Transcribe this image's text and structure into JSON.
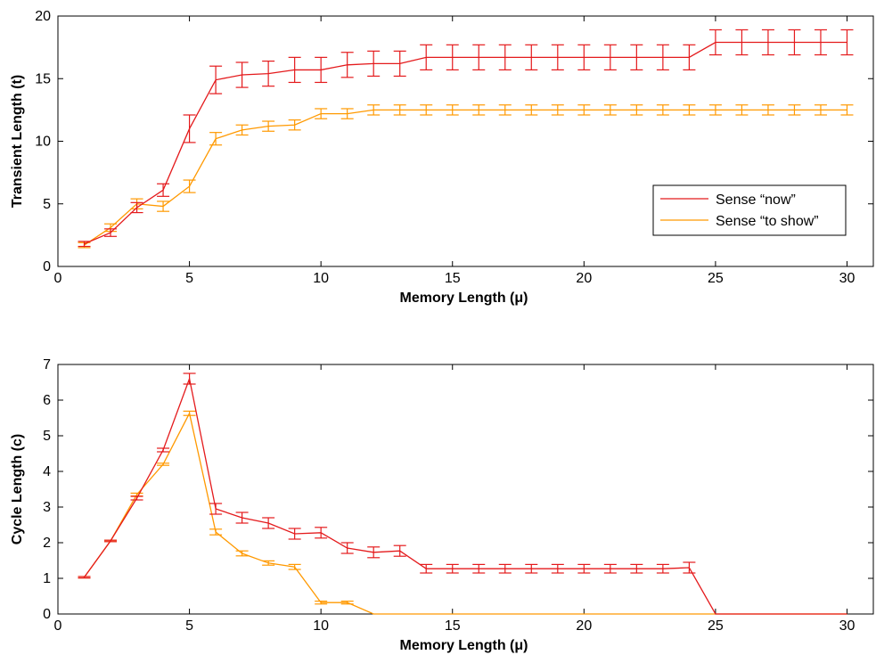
{
  "chart_data": [
    {
      "type": "line",
      "title": "",
      "xlabel": "Memory Length (μ)",
      "ylabel": "Transient Length (t)",
      "xlim": [
        0,
        31
      ],
      "ylim": [
        0,
        20
      ],
      "xticks": [
        0,
        5,
        10,
        15,
        20,
        25,
        30
      ],
      "yticks": [
        0,
        5,
        10,
        15,
        20
      ],
      "grid": false,
      "legend_position": "right-middle",
      "x": [
        1,
        2,
        3,
        4,
        5,
        6,
        7,
        8,
        9,
        10,
        11,
        12,
        13,
        14,
        15,
        16,
        17,
        18,
        19,
        20,
        21,
        22,
        23,
        24,
        25,
        26,
        27,
        28,
        29,
        30
      ],
      "series": [
        {
          "name": "Sense “now”",
          "color": "#e41a1c",
          "values": [
            1.8,
            2.7,
            4.7,
            6.1,
            11.0,
            14.9,
            15.3,
            15.4,
            15.7,
            15.7,
            16.1,
            16.2,
            16.2,
            16.7,
            16.7,
            16.7,
            16.7,
            16.7,
            16.7,
            16.7,
            16.7,
            16.7,
            16.7,
            16.7,
            17.9,
            17.9,
            17.9,
            17.9,
            17.9,
            17.9
          ],
          "errors": [
            0.2,
            0.3,
            0.4,
            0.5,
            1.1,
            1.1,
            1.0,
            1.0,
            1.0,
            1.0,
            1.0,
            1.0,
            1.0,
            1.0,
            1.0,
            1.0,
            1.0,
            1.0,
            1.0,
            1.0,
            1.0,
            1.0,
            1.0,
            1.0,
            1.0,
            1.0,
            1.0,
            1.0,
            1.0,
            1.0
          ]
        },
        {
          "name": "Sense “to show”",
          "color": "#ff9900",
          "values": [
            1.7,
            3.1,
            5.0,
            4.8,
            6.4,
            10.2,
            10.9,
            11.2,
            11.3,
            12.2,
            12.2,
            12.5,
            12.5,
            12.5,
            12.5,
            12.5,
            12.5,
            12.5,
            12.5,
            12.5,
            12.5,
            12.5,
            12.5,
            12.5,
            12.5,
            12.5,
            12.5,
            12.5,
            12.5,
            12.5
          ],
          "errors": [
            0.2,
            0.3,
            0.4,
            0.4,
            0.5,
            0.5,
            0.4,
            0.4,
            0.4,
            0.4,
            0.4,
            0.4,
            0.4,
            0.4,
            0.4,
            0.4,
            0.4,
            0.4,
            0.4,
            0.4,
            0.4,
            0.4,
            0.4,
            0.4,
            0.4,
            0.4,
            0.4,
            0.4,
            0.4,
            0.4
          ]
        }
      ]
    },
    {
      "type": "line",
      "title": "",
      "xlabel": "Memory Length (μ)",
      "ylabel": "Cycle Length (c)",
      "xlim": [
        0,
        31
      ],
      "ylim": [
        0,
        7
      ],
      "xticks": [
        0,
        5,
        10,
        15,
        20,
        25,
        30
      ],
      "yticks": [
        0,
        1,
        2,
        3,
        4,
        5,
        6,
        7
      ],
      "grid": false,
      "x": [
        1,
        2,
        3,
        4,
        5,
        6,
        7,
        8,
        9,
        10,
        11,
        12,
        13,
        14,
        15,
        16,
        17,
        18,
        19,
        20,
        21,
        22,
        23,
        24,
        25,
        26,
        27,
        28,
        29,
        30
      ],
      "series": [
        {
          "name": "Sense “now”",
          "color": "#e41a1c",
          "values": [
            1.03,
            2.05,
            3.25,
            4.6,
            6.6,
            2.95,
            2.7,
            2.55,
            2.25,
            2.28,
            1.85,
            1.73,
            1.77,
            1.27,
            1.27,
            1.27,
            1.27,
            1.27,
            1.27,
            1.27,
            1.27,
            1.27,
            1.27,
            1.3,
            0,
            0,
            0,
            0,
            0,
            0
          ],
          "errors": [
            0.02,
            0.02,
            0.05,
            0.05,
            0.15,
            0.15,
            0.15,
            0.15,
            0.15,
            0.15,
            0.15,
            0.15,
            0.15,
            0.12,
            0.12,
            0.12,
            0.12,
            0.12,
            0.12,
            0.12,
            0.12,
            0.12,
            0.12,
            0.15,
            0,
            0,
            0,
            0,
            0,
            0
          ]
        },
        {
          "name": "Sense “to show”",
          "color": "#ff9900",
          "values": [
            1.03,
            2.05,
            3.35,
            4.2,
            5.63,
            2.3,
            1.7,
            1.43,
            1.32,
            0.32,
            0.32,
            0,
            0,
            0,
            0,
            0,
            0,
            0,
            0,
            0,
            0,
            0,
            0,
            0,
            0,
            0,
            0,
            0,
            0,
            0
          ],
          "errors": [
            0.02,
            0.02,
            0.04,
            0.03,
            0.06,
            0.08,
            0.07,
            0.06,
            0.07,
            0.04,
            0.04,
            0,
            0,
            0,
            0,
            0,
            0,
            0,
            0,
            0,
            0,
            0,
            0,
            0,
            0,
            0,
            0,
            0,
            0,
            0
          ]
        }
      ]
    }
  ]
}
